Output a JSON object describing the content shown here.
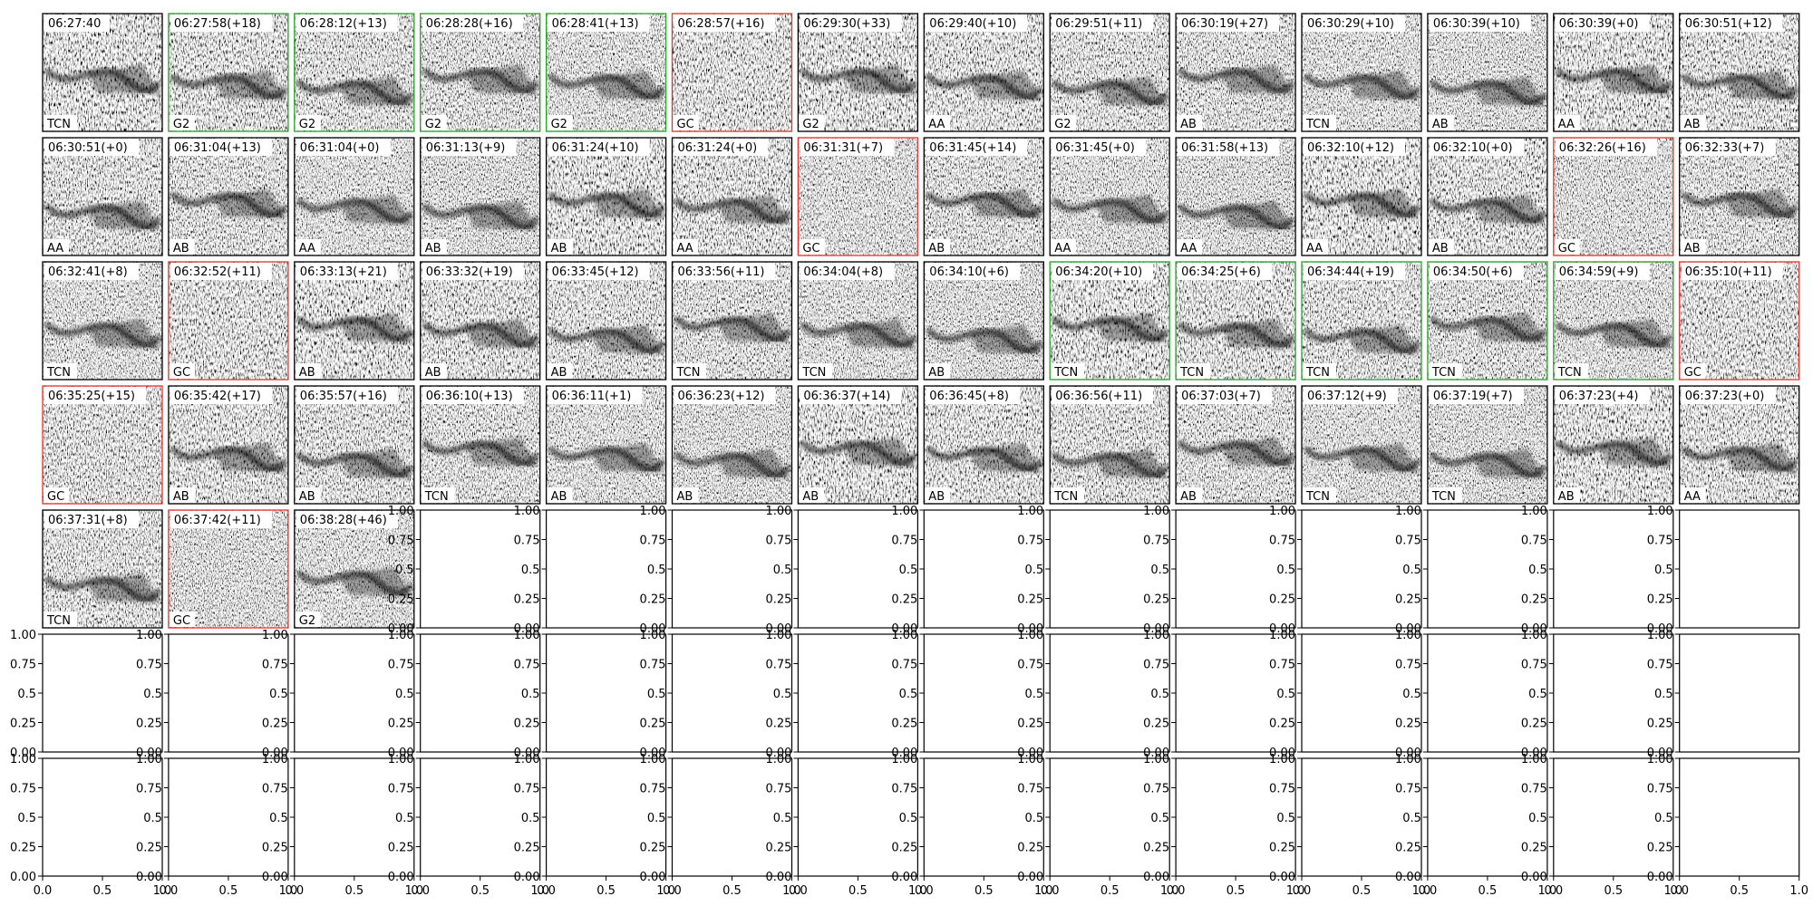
{
  "panels": [
    {
      "time": "06:27:40",
      "label": "TCN",
      "border": "black"
    },
    {
      "time": "06:27:58(+18)",
      "label": "G2",
      "border": "green"
    },
    {
      "time": "06:28:12(+13)",
      "label": "G2",
      "border": "green"
    },
    {
      "time": "06:28:28(+16)",
      "label": "G2",
      "border": "green"
    },
    {
      "time": "06:28:41(+13)",
      "label": "G2",
      "border": "green"
    },
    {
      "time": "06:28:57(+16)",
      "label": "GC",
      "border": "red"
    },
    {
      "time": "06:29:30(+33)",
      "label": "G2",
      "border": "black"
    },
    {
      "time": "06:29:40(+10)",
      "label": "AA",
      "border": "black"
    },
    {
      "time": "06:29:51(+11)",
      "label": "G2",
      "border": "black"
    },
    {
      "time": "06:30:19(+27)",
      "label": "AB",
      "border": "black"
    },
    {
      "time": "06:30:29(+10)",
      "label": "TCN",
      "border": "black"
    },
    {
      "time": "06:30:39(+10)",
      "label": "AB",
      "border": "black"
    },
    {
      "time": "06:30:39(+0)",
      "label": "AA",
      "border": "black"
    },
    {
      "time": "06:30:51(+12)",
      "label": "AB",
      "border": "black"
    },
    {
      "time": "06:30:51(+0)",
      "label": "AA",
      "border": "black"
    },
    {
      "time": "06:31:04(+13)",
      "label": "AB",
      "border": "black"
    },
    {
      "time": "06:31:04(+0)",
      "label": "AA",
      "border": "black"
    },
    {
      "time": "06:31:13(+9)",
      "label": "AB",
      "border": "black"
    },
    {
      "time": "06:31:24(+10)",
      "label": "AB",
      "border": "black"
    },
    {
      "time": "06:31:24(+0)",
      "label": "AA",
      "border": "black"
    },
    {
      "time": "06:31:31(+7)",
      "label": "GC",
      "border": "red"
    },
    {
      "time": "06:31:45(+14)",
      "label": "AB",
      "border": "black"
    },
    {
      "time": "06:31:45(+0)",
      "label": "AA",
      "border": "black"
    },
    {
      "time": "06:31:58(+13)",
      "label": "AA",
      "border": "black"
    },
    {
      "time": "06:32:10(+12)",
      "label": "AA",
      "border": "black"
    },
    {
      "time": "06:32:10(+0)",
      "label": "AB",
      "border": "black"
    },
    {
      "time": "06:32:26(+16)",
      "label": "GC",
      "border": "red"
    },
    {
      "time": "06:32:33(+7)",
      "label": "AB",
      "border": "black"
    },
    {
      "time": "06:32:41(+8)",
      "label": "TCN",
      "border": "black"
    },
    {
      "time": "06:32:52(+11)",
      "label": "GC",
      "border": "red"
    },
    {
      "time": "06:33:13(+21)",
      "label": "AB",
      "border": "black"
    },
    {
      "time": "06:33:32(+19)",
      "label": "AB",
      "border": "black"
    },
    {
      "time": "06:33:45(+12)",
      "label": "AB",
      "border": "black"
    },
    {
      "time": "06:33:56(+11)",
      "label": "TCN",
      "border": "black"
    },
    {
      "time": "06:34:04(+8)",
      "label": "TCN",
      "border": "black"
    },
    {
      "time": "06:34:10(+6)",
      "label": "AB",
      "border": "black"
    },
    {
      "time": "06:34:20(+10)",
      "label": "TCN",
      "border": "green"
    },
    {
      "time": "06:34:25(+6)",
      "label": "TCN",
      "border": "green"
    },
    {
      "time": "06:34:44(+19)",
      "label": "TCN",
      "border": "green"
    },
    {
      "time": "06:34:50(+6)",
      "label": "TCN",
      "border": "green"
    },
    {
      "time": "06:34:59(+9)",
      "label": "TCN",
      "border": "green"
    },
    {
      "time": "06:35:10(+11)",
      "label": "GC",
      "border": "red"
    },
    {
      "time": "06:35:25(+15)",
      "label": "GC",
      "border": "red"
    },
    {
      "time": "06:35:42(+17)",
      "label": "AB",
      "border": "black"
    },
    {
      "time": "06:35:57(+16)",
      "label": "AB",
      "border": "black"
    },
    {
      "time": "06:36:10(+13)",
      "label": "TCN",
      "border": "black"
    },
    {
      "time": "06:36:11(+1)",
      "label": "AB",
      "border": "black"
    },
    {
      "time": "06:36:23(+12)",
      "label": "AB",
      "border": "black"
    },
    {
      "time": "06:36:37(+14)",
      "label": "AB",
      "border": "black"
    },
    {
      "time": "06:36:45(+8)",
      "label": "AB",
      "border": "black"
    },
    {
      "time": "06:36:56(+11)",
      "label": "TCN",
      "border": "black"
    },
    {
      "time": "06:37:03(+7)",
      "label": "AB",
      "border": "black"
    },
    {
      "time": "06:37:12(+9)",
      "label": "TCN",
      "border": "black"
    },
    {
      "time": "06:37:19(+7)",
      "label": "TCN",
      "border": "black"
    },
    {
      "time": "06:37:23(+4)",
      "label": "AB",
      "border": "black"
    },
    {
      "time": "06:37:23(+0)",
      "label": "AA",
      "border": "black"
    },
    {
      "time": "06:37:31(+8)",
      "label": "TCN",
      "border": "black"
    },
    {
      "time": "06:37:42(+11)",
      "label": "GC",
      "border": "red"
    },
    {
      "time": "06:38:28(+46)",
      "label": "G2",
      "border": "black"
    }
  ],
  "empty_axes": {
    "yticks": [
      {
        "value": 0,
        "label": "0.00"
      },
      0.25,
      0.5,
      0.75,
      {
        "value": 1,
        "label": "1.00"
      }
    ],
    "xticks": [
      {
        "value": 0,
        "label": "0.0"
      },
      0.5,
      {
        "value": 1,
        "label": "1.0"
      }
    ]
  }
}
